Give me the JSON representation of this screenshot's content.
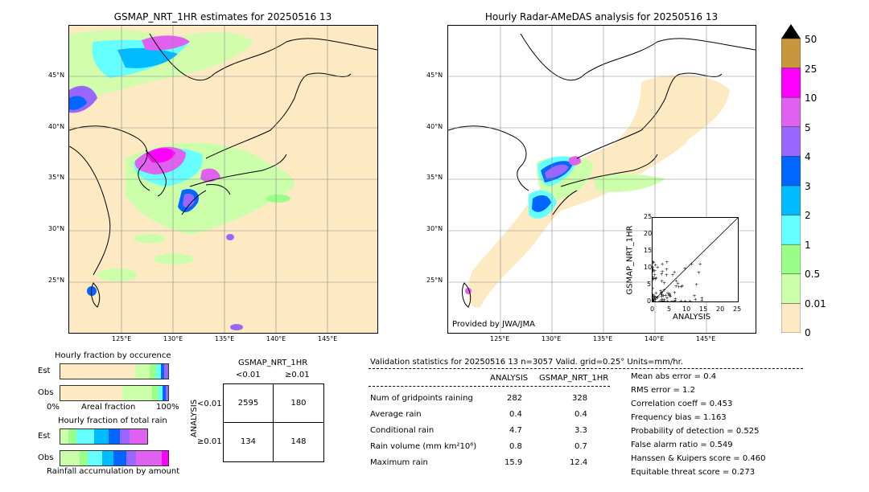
{
  "left_map": {
    "title": "GSMAP_NRT_1HR estimates for 20250516 13",
    "lat_ticks": [
      "45°N",
      "40°N",
      "35°N",
      "30°N",
      "25°N"
    ],
    "lon_ticks": [
      "125°E",
      "130°E",
      "135°E",
      "140°E",
      "145°E"
    ]
  },
  "right_map": {
    "title": "Hourly Radar-AMeDAS analysis for 20250516 13",
    "lat_ticks": [
      "45°N",
      "40°N",
      "35°N",
      "30°N",
      "25°N"
    ],
    "lon_ticks": [
      "125°E",
      "130°E",
      "135°E",
      "140°E",
      "145°E"
    ],
    "credit": "Provided by JWA/JMA"
  },
  "colorbar": {
    "labels": [
      "50",
      "25",
      "10",
      "5",
      "4",
      "3",
      "2",
      "1",
      "0.5",
      "0.01",
      "0"
    ],
    "colors": [
      "#c8963c",
      "#ff00ff",
      "#e060f0",
      "#9966ff",
      "#0066ff",
      "#00bbff",
      "#66ffff",
      "#99ff88",
      "#ccffaa",
      "#fde9c2"
    ]
  },
  "scatter": {
    "xlabel": "ANALYSIS",
    "ylabel": "GSMAP_NRT_1HR",
    "ticks": [
      "0",
      "5",
      "10",
      "15",
      "20",
      "25"
    ]
  },
  "occurrence": {
    "title": "Hourly fraction by occurence",
    "est_label": "Est",
    "obs_label": "Obs",
    "axis_left": "0%",
    "axis_mid": "Areal fraction",
    "axis_right": "100%"
  },
  "total_rain": {
    "title": "Hourly fraction of total rain",
    "est_label": "Est",
    "obs_label": "Obs",
    "footer": "Rainfall accumulation by amount"
  },
  "contingency": {
    "title": "GSMAP_NRT_1HR",
    "col1": "<0.01",
    "col2": "≥0.01",
    "row_axis": "ANALYSIS",
    "row1": "<0.01",
    "row2": "≥0.01",
    "v11": "2595",
    "v12": "180",
    "v21": "134",
    "v22": "148"
  },
  "validation": {
    "header": "Validation statistics for 20250516 13  n=3057 Valid. grid=0.25° Units=mm/hr.",
    "col_analysis": "ANALYSIS",
    "col_gsmap": "GSMAP_NRT_1HR",
    "rows": [
      {
        "label": "Num of gridpoints raining",
        "a": "282",
        "g": "328"
      },
      {
        "label": "Average rain",
        "a": "0.4",
        "g": "0.4"
      },
      {
        "label": "Conditional rain",
        "a": "4.7",
        "g": "3.3"
      },
      {
        "label": "Rain volume (mm km²10⁶)",
        "a": "0.8",
        "g": "0.7"
      },
      {
        "label": "Maximum rain",
        "a": "15.9",
        "g": "12.4"
      }
    ],
    "scores": [
      "Mean abs error =    0.4",
      "RMS error =    1.2",
      "Correlation coeff =  0.453",
      "Frequency bias =  1.163",
      "Probability of detection =  0.525",
      "False alarm ratio =  0.549",
      "Hanssen & Kuipers score =  0.460",
      "Equitable threat score =  0.273"
    ]
  }
}
